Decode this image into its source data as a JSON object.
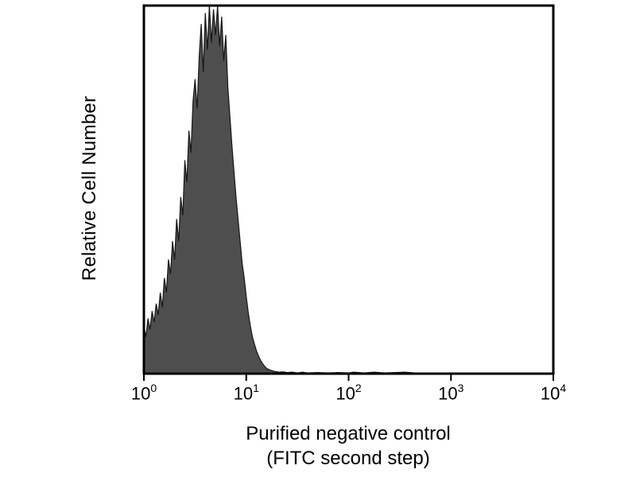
{
  "figure": {
    "background": "#ffffff",
    "border_color": "#000000"
  },
  "chart_data": {
    "type": "area",
    "chart_kind": "flow-cytometry-histogram",
    "title": "",
    "ylabel": "Relative Cell Number",
    "xlabel_line1": "Purified negative control",
    "xlabel_line2": "(FITC second step)",
    "x_scale": "log10",
    "x_domain_log10": [
      0,
      4
    ],
    "y_domain": [
      0,
      1
    ],
    "grid": false,
    "legend": false,
    "y_ticks": [],
    "x_ticks": [
      {
        "base": "10",
        "exponent": "0",
        "log10": 0
      },
      {
        "base": "10",
        "exponent": "1",
        "log10": 1
      },
      {
        "base": "10",
        "exponent": "2",
        "log10": 2
      },
      {
        "base": "10",
        "exponent": "3",
        "log10": 3
      },
      {
        "base": "10",
        "exponent": "4",
        "log10": 4
      }
    ],
    "series": [
      {
        "name": "Purified negative control (FITC second step)",
        "fill_color": "#4e4e4e",
        "outline_color": "#161616",
        "peak_log10x": 0.7,
        "points_log10x_height": [
          [
            0.0,
            0.13
          ],
          [
            0.02,
            0.1
          ],
          [
            0.04,
            0.15
          ],
          [
            0.06,
            0.12
          ],
          [
            0.08,
            0.17
          ],
          [
            0.1,
            0.14
          ],
          [
            0.12,
            0.19
          ],
          [
            0.14,
            0.16
          ],
          [
            0.16,
            0.22
          ],
          [
            0.18,
            0.18
          ],
          [
            0.2,
            0.26
          ],
          [
            0.22,
            0.22
          ],
          [
            0.24,
            0.31
          ],
          [
            0.26,
            0.27
          ],
          [
            0.28,
            0.36
          ],
          [
            0.3,
            0.31
          ],
          [
            0.32,
            0.42
          ],
          [
            0.34,
            0.36
          ],
          [
            0.36,
            0.48
          ],
          [
            0.38,
            0.43
          ],
          [
            0.4,
            0.58
          ],
          [
            0.42,
            0.52
          ],
          [
            0.44,
            0.66
          ],
          [
            0.46,
            0.6
          ],
          [
            0.48,
            0.74
          ],
          [
            0.5,
            0.8
          ],
          [
            0.52,
            0.72
          ],
          [
            0.54,
            0.86
          ],
          [
            0.56,
            0.95
          ],
          [
            0.58,
            0.82
          ],
          [
            0.6,
            0.98
          ],
          [
            0.62,
            0.88
          ],
          [
            0.64,
            1.0
          ],
          [
            0.66,
            0.9
          ],
          [
            0.68,
            0.99
          ],
          [
            0.7,
            0.92
          ],
          [
            0.72,
            1.0
          ],
          [
            0.74,
            0.89
          ],
          [
            0.76,
            0.97
          ],
          [
            0.78,
            0.85
          ],
          [
            0.8,
            0.92
          ],
          [
            0.82,
            0.78
          ],
          [
            0.84,
            0.7
          ],
          [
            0.86,
            0.62
          ],
          [
            0.88,
            0.55
          ],
          [
            0.9,
            0.48
          ],
          [
            0.92,
            0.42
          ],
          [
            0.94,
            0.36
          ],
          [
            0.96,
            0.3
          ],
          [
            0.98,
            0.26
          ],
          [
            1.0,
            0.21
          ],
          [
            1.02,
            0.165
          ],
          [
            1.04,
            0.13
          ],
          [
            1.06,
            0.1
          ],
          [
            1.08,
            0.08
          ],
          [
            1.1,
            0.062
          ],
          [
            1.12,
            0.048
          ],
          [
            1.14,
            0.036
          ],
          [
            1.16,
            0.027
          ],
          [
            1.18,
            0.02
          ],
          [
            1.2,
            0.014
          ],
          [
            1.24,
            0.009
          ],
          [
            1.28,
            0.006
          ],
          [
            1.32,
            0.004
          ],
          [
            1.36,
            0.005
          ],
          [
            1.4,
            0.003
          ],
          [
            1.45,
            0.004
          ],
          [
            1.5,
            0.002
          ],
          [
            1.55,
            0.004
          ],
          [
            1.6,
            0.002
          ],
          [
            1.7,
            0.003
          ],
          [
            1.8,
            0.002
          ],
          [
            1.9,
            0.003
          ],
          [
            2.0,
            0.002
          ],
          [
            2.05,
            0.004
          ],
          [
            2.15,
            0.002
          ],
          [
            2.25,
            0.004
          ],
          [
            2.35,
            0.002
          ],
          [
            2.45,
            0.003
          ],
          [
            2.55,
            0.004
          ],
          [
            2.65,
            0.002
          ],
          [
            2.75,
            0.002
          ],
          [
            2.9,
            0.001
          ],
          [
            3.1,
            0.001
          ],
          [
            3.4,
            0.0
          ],
          [
            3.7,
            0.0
          ],
          [
            4.0,
            0.0
          ]
        ]
      }
    ]
  }
}
